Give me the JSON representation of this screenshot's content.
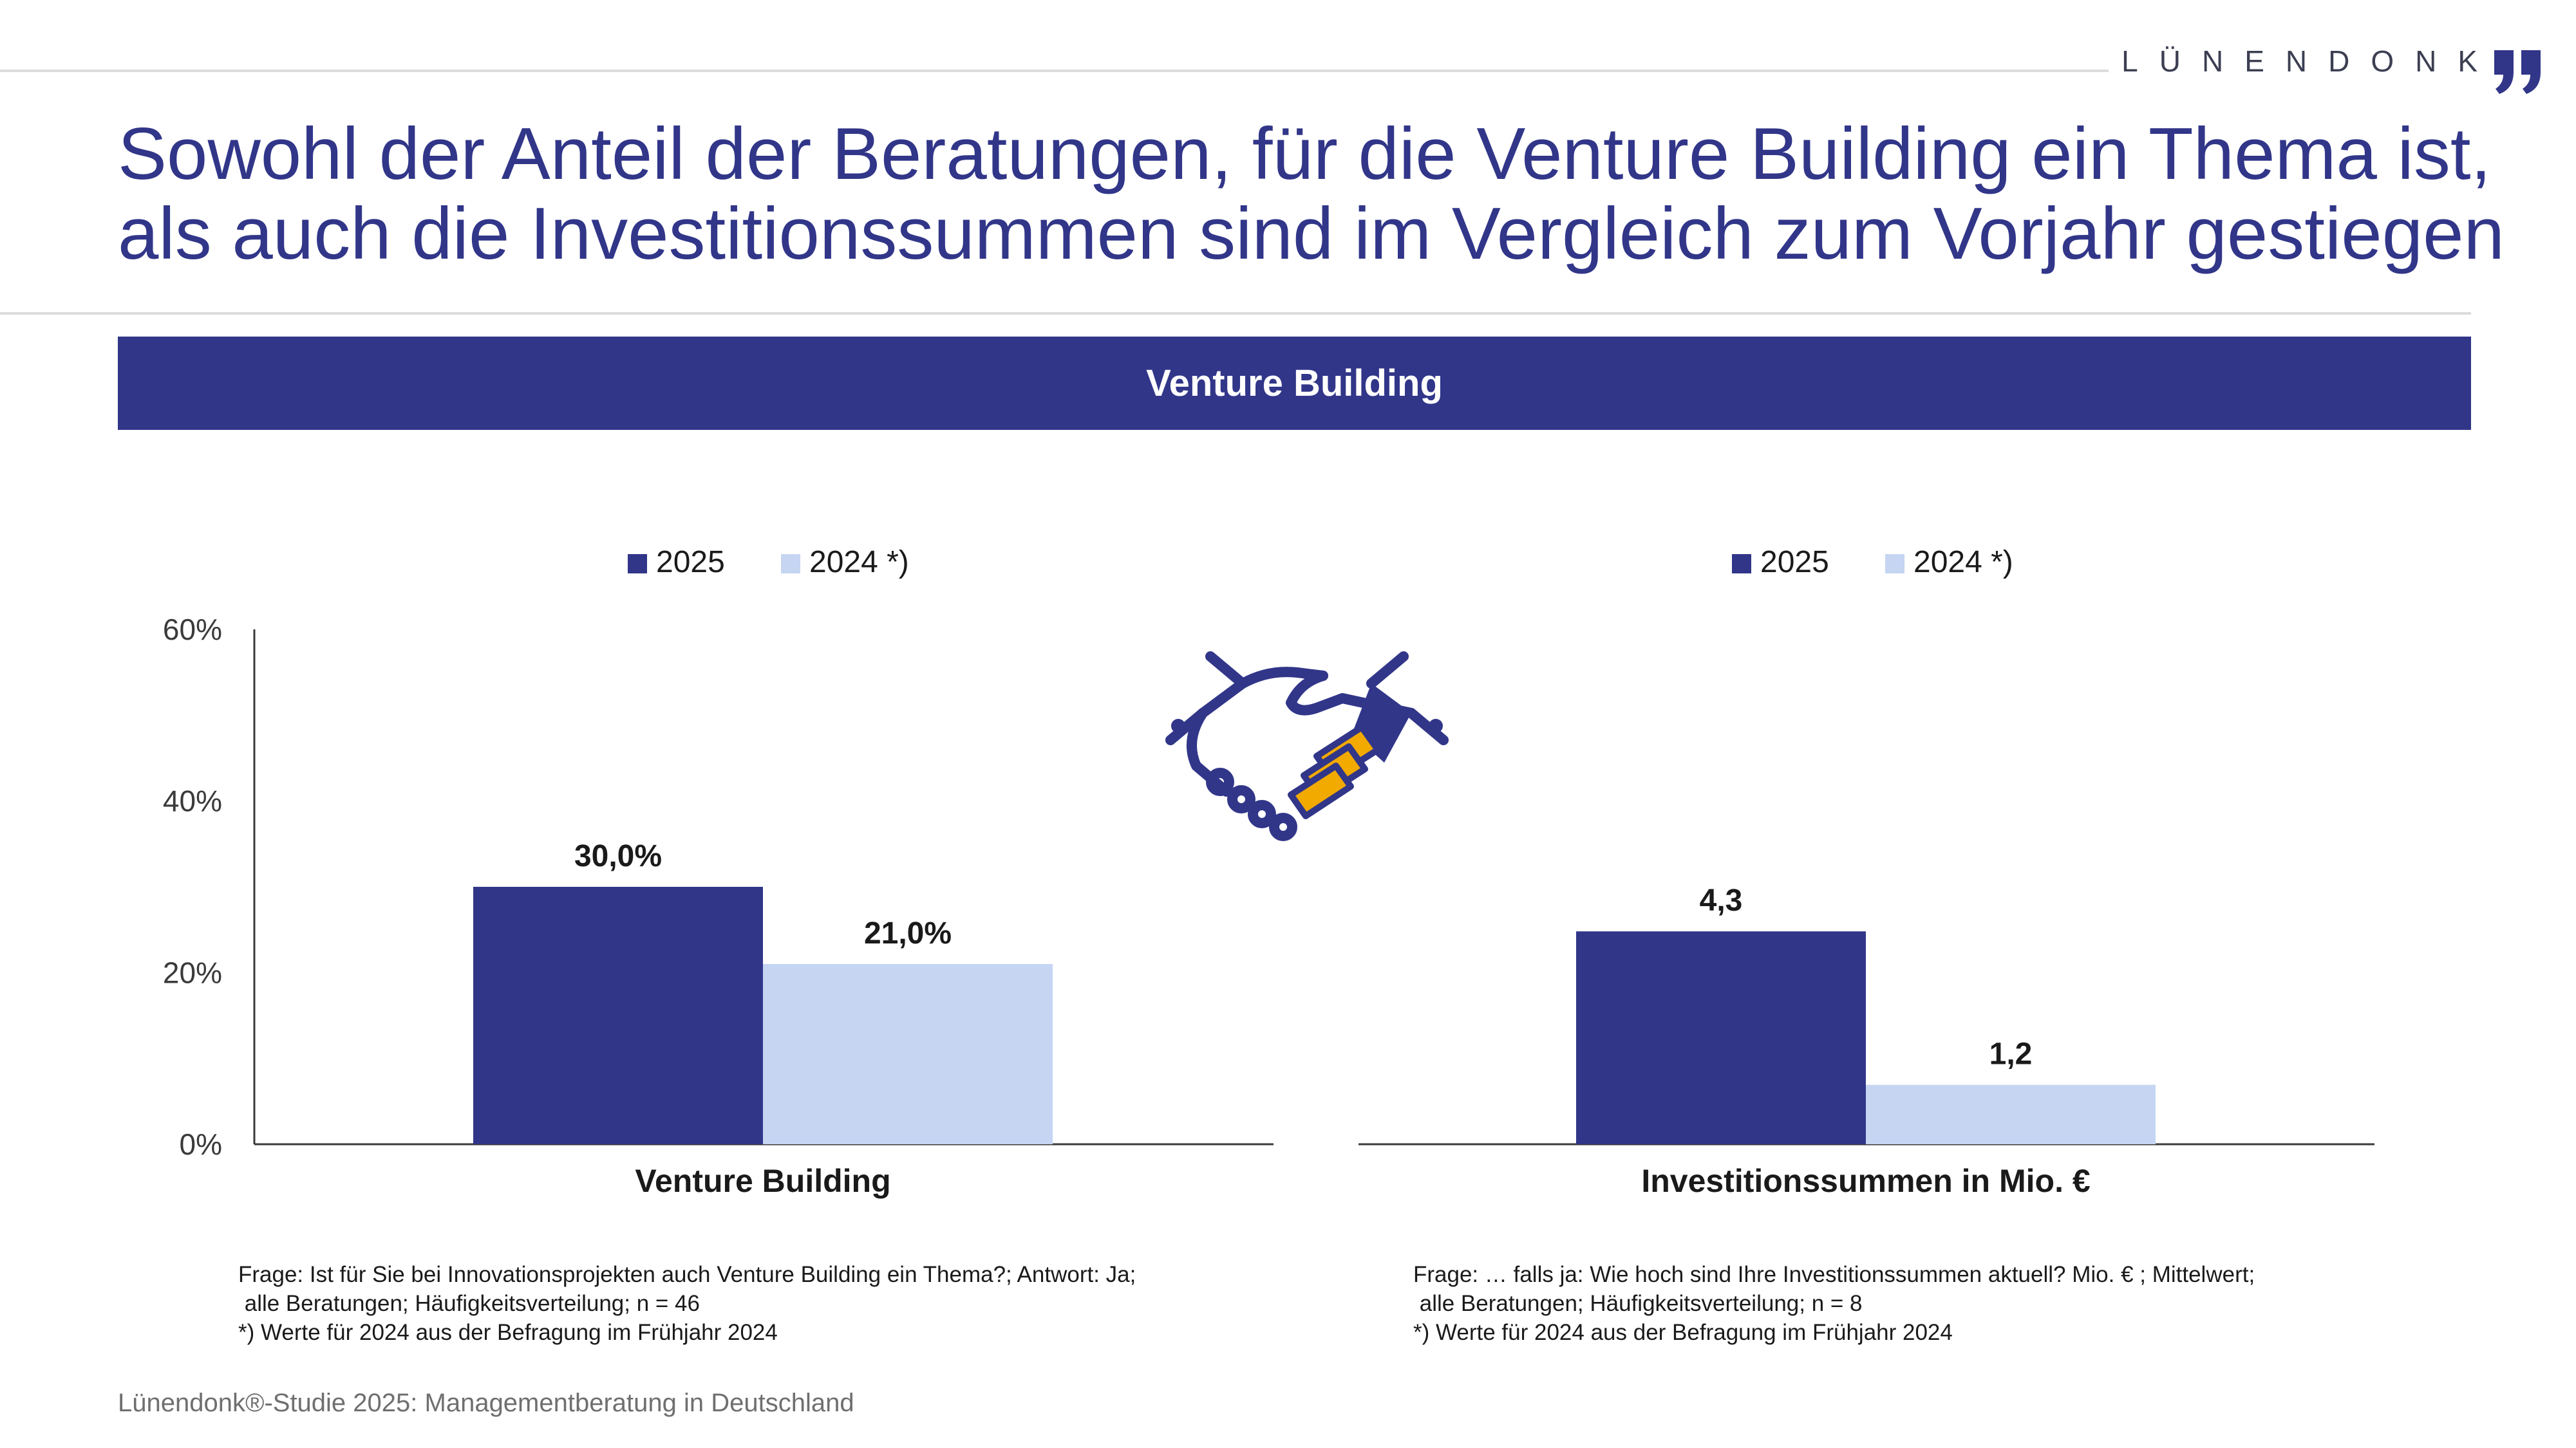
{
  "brand": {
    "name": "LÜNENDONK"
  },
  "title": {
    "line1": "Sowohl der Anteil der Beratungen, für die Venture Building ein Thema ist,",
    "line2": "als auch die Investitionssummen sind im Vergleich zum Vorjahr gestiegen"
  },
  "banner": {
    "label": "Venture Building"
  },
  "colors": {
    "primary": "#313689",
    "secondary": "#c5d5f2",
    "accent": "#f2a900"
  },
  "icon": {
    "name": "handshake-icon"
  },
  "chart_data": [
    {
      "type": "bar",
      "categories": [
        "Venture Building"
      ],
      "series": [
        {
          "name": "2025",
          "values": [
            30.0
          ],
          "labels": [
            "30,0%"
          ]
        },
        {
          "name": "2024 *)",
          "values": [
            21.0
          ],
          "labels": [
            "21,0%"
          ]
        }
      ],
      "xlabel": "Venture Building",
      "ylim": [
        0,
        60
      ],
      "yticks": [
        0,
        20,
        40,
        60
      ],
      "ytick_labels": [
        "0%",
        "20%",
        "40%",
        "60%"
      ],
      "legend": "top"
    },
    {
      "type": "bar",
      "categories": [
        "Investitionssummen in Mio. €"
      ],
      "series": [
        {
          "name": "2025",
          "values": [
            4.3
          ],
          "labels": [
            "4,3"
          ]
        },
        {
          "name": "2024 *)",
          "values": [
            1.2
          ],
          "labels": [
            "1,2"
          ]
        }
      ],
      "xlabel": "Investitionssummen in Mio. €",
      "ylim": [
        0,
        10.4
      ],
      "legend": "top"
    }
  ],
  "footnotes": [
    "Frage: Ist für Sie bei Innovationsprojekten auch Venture Building ein Thema?; Antwort: Ja;\n alle Beratungen; Häufigkeitsverteilung; n = 46\n*) Werte für 2024 aus der Befragung im Frühjahr 2024",
    "Frage: … falls ja: Wie hoch sind Ihre Investitionssummen aktuell? Mio. € ; Mittelwert;\n alle Beratungen; Häufigkeitsverteilung; n = 8\n*) Werte für 2024 aus der Befragung im Frühjahr 2024"
  ],
  "source": "Lünendonk®-Studie 2025: Managementberatung in Deutschland"
}
